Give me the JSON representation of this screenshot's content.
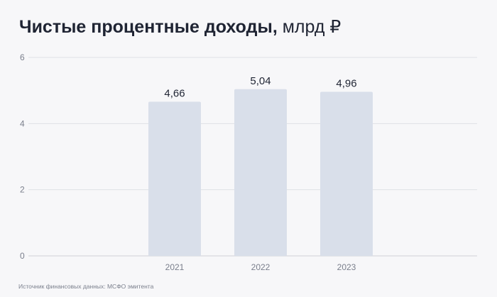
{
  "header": {
    "title": "Чистые процентные доходы",
    "title_unit": "млрд ₽"
  },
  "footer": {
    "source": "Источник финансовых данных: МСФО эмитента"
  },
  "colors": {
    "background": "#f7f7f9",
    "bar": "#d9dfea",
    "grid": "#dfe1e6",
    "text_dark": "#1f2433",
    "text_muted": "#7a7f8c"
  },
  "chart_data": {
    "type": "bar",
    "title": "Чистые процентные доходы, млрд ₽",
    "categories": [
      "2021",
      "2022",
      "2023"
    ],
    "values": [
      4.66,
      5.04,
      4.96
    ],
    "value_labels": [
      "4,66",
      "5,04",
      "4,96"
    ],
    "ylim": [
      0,
      6
    ],
    "yticks": [
      0,
      2,
      4,
      6
    ],
    "ytick_labels": [
      "0",
      "2",
      "4",
      "6"
    ],
    "grid": true,
    "legend": "none"
  }
}
